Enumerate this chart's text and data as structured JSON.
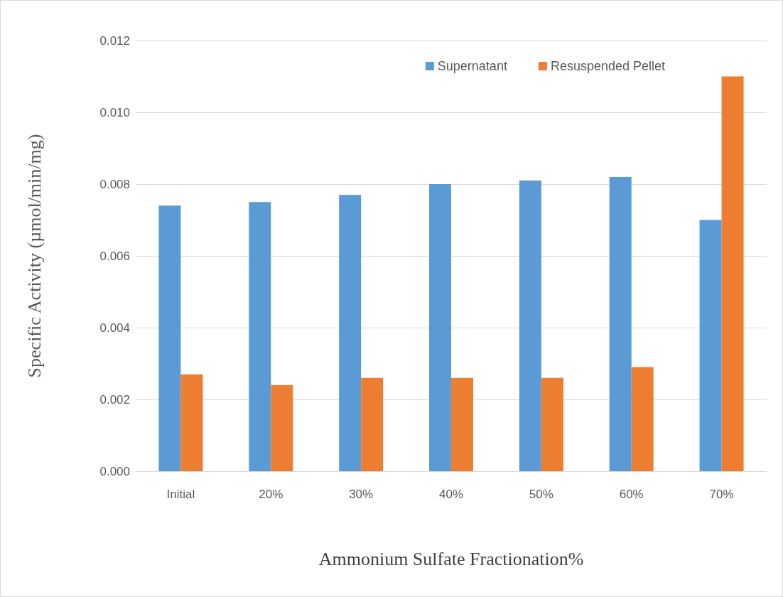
{
  "chart_data": {
    "type": "bar",
    "xlabel": "Ammonium Sulfate Fractionation%",
    "ylabel": "Specific Activity (µmol/min/mg)",
    "categories": [
      "Initial",
      "20%",
      "30%",
      "40%",
      "50%",
      "60%",
      "70%"
    ],
    "series": [
      {
        "name": "Supernatant",
        "color": "#5b9bd5",
        "values": [
          0.0074,
          0.0075,
          0.0077,
          0.008,
          0.0081,
          0.0082,
          0.007
        ]
      },
      {
        "name": "Resuspended Pellet",
        "color": "#ed7d31",
        "values": [
          0.0027,
          0.0024,
          0.0026,
          0.0026,
          0.0026,
          0.0029,
          0.011
        ]
      }
    ],
    "ylim": [
      0,
      0.012
    ],
    "yticks": [
      {
        "value": 0,
        "label": "0.000"
      },
      {
        "value": 0.002,
        "label": "0.002"
      },
      {
        "value": 0.004,
        "label": "0.004"
      },
      {
        "value": 0.006,
        "label": "0.006"
      },
      {
        "value": 0.008,
        "label": "0.008"
      },
      {
        "value": 0.01,
        "label": "0.010"
      },
      {
        "value": 0.012,
        "label": "0.012"
      }
    ],
    "grid": "y",
    "legend": "top right"
  }
}
